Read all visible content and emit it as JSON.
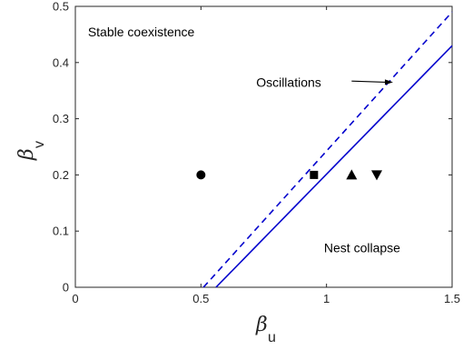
{
  "chart_data": {
    "type": "line",
    "xlabel": {
      "symbol": "β",
      "subscript": "u"
    },
    "ylabel": {
      "symbol": "β",
      "subscript": "v"
    },
    "xlim": [
      0,
      1.5
    ],
    "ylim": [
      0,
      0.5
    ],
    "x_ticks": [
      {
        "value": 0,
        "label": "0"
      },
      {
        "value": 0.5,
        "label": "0.5"
      },
      {
        "value": 1,
        "label": "1"
      },
      {
        "value": 1.5,
        "label": "1.5"
      }
    ],
    "y_ticks": [
      {
        "value": 0,
        "label": "0"
      },
      {
        "value": 0.1,
        "label": "0.1"
      },
      {
        "value": 0.2,
        "label": "0.2"
      },
      {
        "value": 0.3,
        "label": "0.3"
      },
      {
        "value": 0.4,
        "label": "0.4"
      },
      {
        "value": 0.5,
        "label": "0.5"
      }
    ],
    "grid": false,
    "series": [
      {
        "style": "dashed",
        "color": "#0000cd",
        "points": [
          [
            0.51,
            0
          ],
          [
            1.5,
            0.49
          ]
        ]
      },
      {
        "style": "solid",
        "color": "#0000cd",
        "points": [
          [
            0.56,
            0
          ],
          [
            1.5,
            0.43
          ]
        ]
      }
    ],
    "markers": [
      {
        "shape": "circle",
        "x": 0.5,
        "y": 0.2
      },
      {
        "shape": "square",
        "x": 0.95,
        "y": 0.2
      },
      {
        "shape": "triangle-up",
        "x": 1.1,
        "y": 0.2
      },
      {
        "shape": "triangle-down",
        "x": 1.2,
        "y": 0.2
      }
    ],
    "annotations": [
      {
        "id": "stable",
        "text": "Stable coexistence",
        "x": 0.05,
        "y": 0.455
      },
      {
        "id": "oscillations",
        "text": "Oscillations",
        "x": 0.72,
        "y": 0.365,
        "arrow_from": [
          1.1,
          0.367
        ],
        "arrow_to": [
          1.265,
          0.365
        ]
      },
      {
        "id": "nest",
        "text": "Nest collapse",
        "x": 0.99,
        "y": 0.07
      }
    ]
  }
}
